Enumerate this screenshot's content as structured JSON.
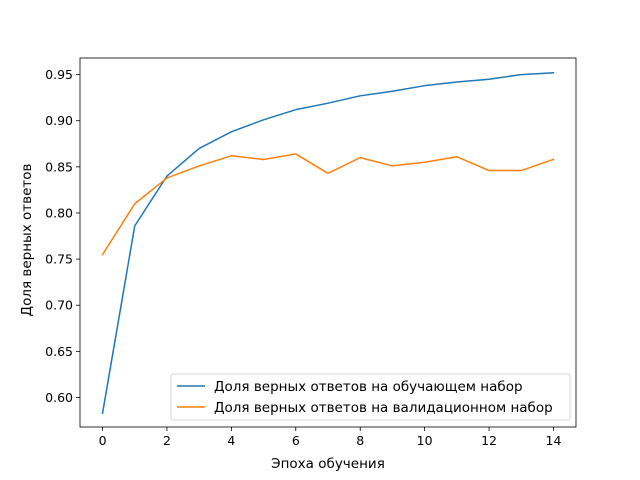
{
  "chart_data": {
    "type": "line",
    "title": "",
    "xlabel": "Эпоха обучения",
    "ylabel": "Доля верных ответов",
    "xlim": [
      -0.7,
      14.7
    ],
    "ylim": [
      0.568,
      0.968
    ],
    "x": [
      0,
      1,
      2,
      3,
      4,
      5,
      6,
      7,
      8,
      9,
      10,
      11,
      12,
      13,
      14
    ],
    "xticks": [
      "0",
      "2",
      "4",
      "6",
      "8",
      "10",
      "12",
      "14"
    ],
    "yticks": [
      "0.60",
      "0.65",
      "0.70",
      "0.75",
      "0.80",
      "0.85",
      "0.90",
      "0.95"
    ],
    "grid": false,
    "legend_position": "lower-right",
    "series": [
      {
        "name": "Доля верных ответов на обучающем набор",
        "color": "#1f77b4",
        "values": [
          0.583,
          0.786,
          0.84,
          0.87,
          0.888,
          0.901,
          0.912,
          0.919,
          0.927,
          0.932,
          0.938,
          0.942,
          0.945,
          0.95,
          0.952
        ]
      },
      {
        "name": "Доля верных ответов на валидационном набор",
        "color": "#ff7f0e",
        "values": [
          0.755,
          0.81,
          0.838,
          0.851,
          0.862,
          0.858,
          0.864,
          0.843,
          0.86,
          0.851,
          0.855,
          0.861,
          0.846,
          0.846,
          0.858
        ]
      }
    ]
  }
}
